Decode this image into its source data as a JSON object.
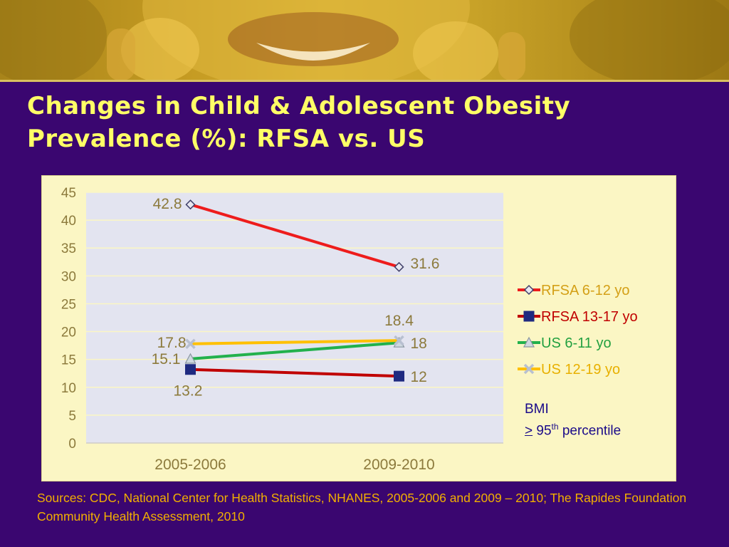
{
  "slide": {
    "title_line1": "Changes in Child & Adolescent Obesity",
    "title_line2": "Prevalence (%): RFSA vs. US",
    "note_line1": "BMI",
    "note_ge": ">",
    "note_value": "95",
    "note_sup": "th",
    "note_rest": "percentile",
    "sources": "Sources: CDC, National  Center for Health Statistics, NHANES, 2005-2006 and 2009 – 2010; The Rapides Foundation Community Health Assessment, 2010"
  },
  "chart_data": {
    "type": "line",
    "title": "",
    "xlabel": "",
    "ylabel": "",
    "categories": [
      "2005-2006",
      "2009-2010"
    ],
    "ylim": [
      0,
      45
    ],
    "yticks": [
      0,
      5,
      10,
      15,
      20,
      25,
      30,
      35,
      40,
      45
    ],
    "grid": true,
    "legend_position": "right",
    "series": [
      {
        "name": "RFSA 6-12 yo",
        "values": [
          42.8,
          31.6
        ],
        "labels": [
          "42.8",
          "31.6"
        ],
        "color": "#ee1c1c",
        "marker": "diamond",
        "marker_color": "#e8e8f0",
        "marker_stroke": "#40406a",
        "label_color": "#d4a017"
      },
      {
        "name": "RFSA 13-17 yo",
        "values": [
          13.2,
          12
        ],
        "labels": [
          "13.2",
          "12"
        ],
        "color": "#c00000",
        "marker": "square",
        "marker_color": "#1f2a80",
        "marker_stroke": "#1f2a80",
        "label_color": "#c00000"
      },
      {
        "name": "US 6-11 yo",
        "values": [
          15.1,
          18
        ],
        "labels": [
          "15.1",
          "18"
        ],
        "color": "#22b14c",
        "marker": "triangle",
        "marker_color": "#cfd8e0",
        "marker_stroke": "#8a96a0",
        "label_color": "#22a040"
      },
      {
        "name": "US 12-19 yo",
        "values": [
          17.8,
          18.4
        ],
        "labels": [
          "17.8",
          "18.4"
        ],
        "color": "#ffc000",
        "marker": "x",
        "marker_color": "#b8c0d0",
        "marker_stroke": "#b8c0d0",
        "label_color": "#e8b000"
      }
    ]
  }
}
